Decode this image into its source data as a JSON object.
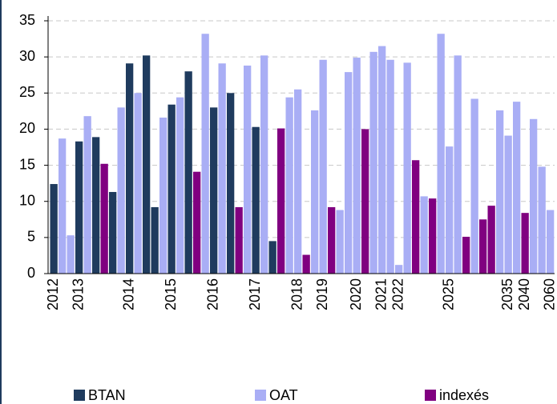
{
  "chart_data": {
    "type": "bar",
    "categories": [
      "2012",
      null,
      null,
      "2013",
      null,
      null,
      null,
      null,
      null,
      "2014",
      null,
      null,
      null,
      null,
      "2015",
      null,
      null,
      null,
      null,
      "2016",
      null,
      null,
      null,
      null,
      "2017",
      null,
      null,
      null,
      null,
      "2018",
      null,
      null,
      "2019",
      null,
      null,
      null,
      "2020",
      null,
      null,
      "2021",
      null,
      "2022",
      null,
      null,
      null,
      null,
      null,
      "2025",
      null,
      null,
      null,
      null,
      null,
      null,
      "2035",
      null,
      "2040",
      null,
      null,
      "2060"
    ],
    "series": [
      {
        "name": "BTAN",
        "color": "#1f3b5e",
        "values": [
          12.4,
          null,
          null,
          18.3,
          null,
          18.9,
          null,
          11.3,
          null,
          29.1,
          null,
          30.2,
          9.2,
          null,
          23.4,
          null,
          28.0,
          null,
          null,
          23.0,
          null,
          25.0,
          null,
          null,
          20.3,
          null,
          4.5,
          null,
          null,
          null,
          null,
          null,
          null,
          null,
          null,
          null,
          null,
          null,
          null,
          null,
          null,
          null,
          null,
          null,
          null,
          null,
          null,
          null,
          null,
          null,
          null,
          null,
          null,
          null,
          null,
          null,
          null,
          null,
          null,
          null
        ]
      },
      {
        "name": "OAT",
        "color": "#a9aef5",
        "values": [
          null,
          18.7,
          5.3,
          null,
          21.8,
          null,
          null,
          null,
          23.0,
          null,
          25.0,
          null,
          null,
          21.6,
          null,
          24.4,
          null,
          null,
          33.2,
          null,
          29.1,
          null,
          null,
          28.8,
          null,
          30.2,
          null,
          null,
          24.4,
          25.5,
          null,
          22.6,
          29.6,
          null,
          8.8,
          27.9,
          29.9,
          null,
          30.7,
          31.5,
          29.6,
          1.2,
          29.2,
          null,
          10.7,
          null,
          33.2,
          17.6,
          30.2,
          null,
          24.2,
          null,
          null,
          22.6,
          19.1,
          23.8,
          null,
          21.4,
          14.8,
          8.8
        ]
      },
      {
        "name": "indexés",
        "color": "#800080",
        "values": [
          null,
          null,
          null,
          null,
          null,
          null,
          15.2,
          null,
          null,
          null,
          null,
          null,
          null,
          null,
          null,
          null,
          null,
          14.1,
          null,
          null,
          null,
          null,
          9.2,
          null,
          null,
          null,
          null,
          20.1,
          null,
          null,
          2.6,
          null,
          null,
          9.2,
          null,
          null,
          null,
          20.0,
          null,
          null,
          null,
          null,
          null,
          15.7,
          null,
          10.4,
          null,
          null,
          null,
          5.1,
          null,
          7.5,
          9.4,
          null,
          null,
          null,
          8.4,
          null,
          null,
          null
        ]
      }
    ],
    "ylim": [
      0,
      35
    ],
    "yticks": [
      0,
      5,
      10,
      15,
      20,
      25,
      30,
      35
    ],
    "grid": true,
    "legend": "bottom"
  }
}
